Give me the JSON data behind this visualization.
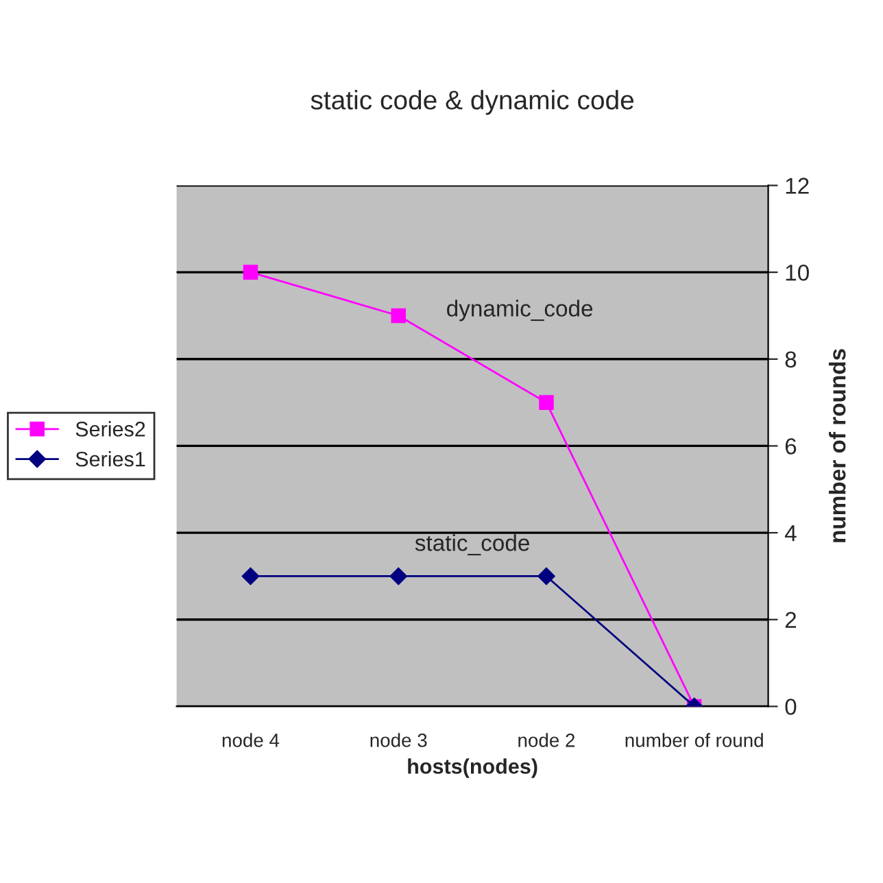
{
  "chart_data": {
    "type": "line",
    "title": "static code & dynamic code",
    "xlabel": "hosts(nodes)",
    "ylabel": "number of rounds",
    "categories": [
      "node 4",
      "node 3",
      "node 2",
      "number of round"
    ],
    "series": [
      {
        "name": "Series2",
        "color": "#ff00ff",
        "marker": "square",
        "values": [
          10,
          9,
          7,
          0
        ]
      },
      {
        "name": "Series1",
        "color": "#000080",
        "marker": "diamond",
        "values": [
          3,
          3,
          3,
          0
        ]
      }
    ],
    "ylim": [
      0,
      12
    ],
    "yticks": [
      0,
      2,
      4,
      6,
      8,
      10,
      12
    ],
    "grid": "y",
    "legend": "left",
    "annotations": [
      "dynamic_code",
      "static_code"
    ]
  }
}
